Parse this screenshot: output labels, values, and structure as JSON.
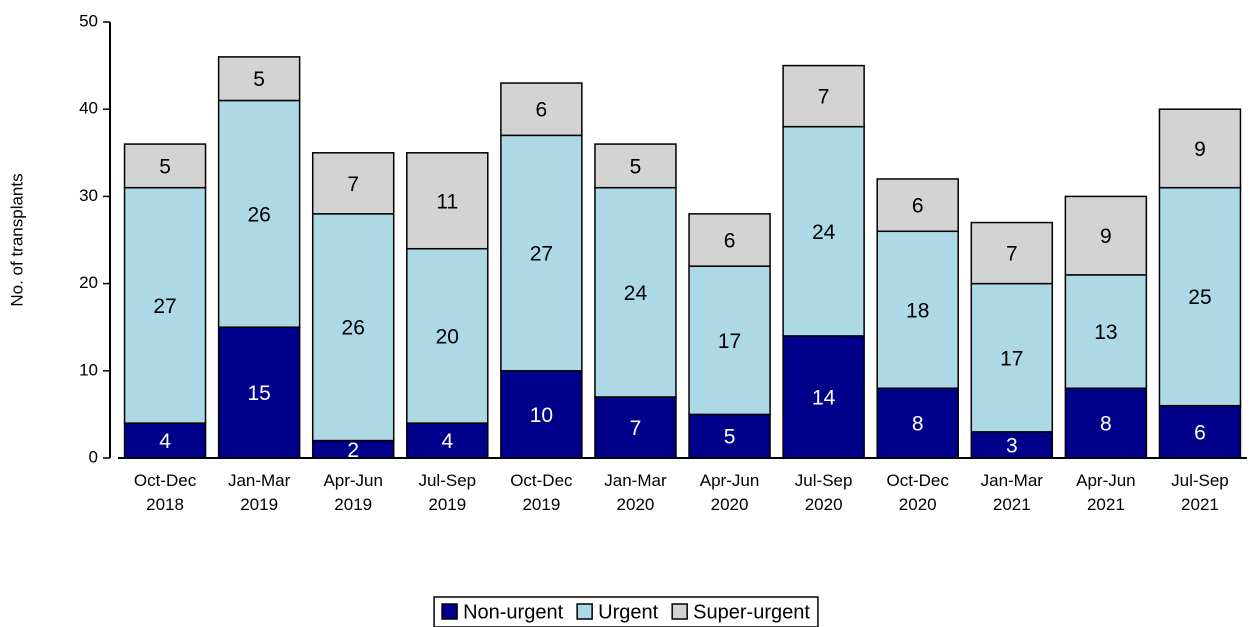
{
  "chart_data": {
    "type": "stacked_bar",
    "y_label": "No. of transplants",
    "categories": [
      [
        "Oct-Dec",
        "2018"
      ],
      [
        "Jan-Mar",
        "2019"
      ],
      [
        "Apr-Jun",
        "2019"
      ],
      [
        "Jul-Sep",
        "2019"
      ],
      [
        "Oct-Dec",
        "2019"
      ],
      [
        "Jan-Mar",
        "2020"
      ],
      [
        "Apr-Jun",
        "2020"
      ],
      [
        "Jul-Sep",
        "2020"
      ],
      [
        "Oct-Dec",
        "2020"
      ],
      [
        "Jan-Mar",
        "2021"
      ],
      [
        "Apr-Jun",
        "2021"
      ],
      [
        "Jul-Sep",
        "2021"
      ]
    ],
    "series": [
      {
        "name": "Non-urgent",
        "color": "#00008b",
        "label_color": "#ffffff",
        "values": [
          4,
          15,
          2,
          4,
          10,
          7,
          5,
          14,
          8,
          3,
          8,
          6
        ]
      },
      {
        "name": "Urgent",
        "color": "#add8e6",
        "label_color": "#000000",
        "values": [
          27,
          26,
          26,
          20,
          27,
          24,
          17,
          24,
          18,
          17,
          13,
          25
        ]
      },
      {
        "name": "Super-urgent",
        "color": "#d3d3d3",
        "label_color": "#000000",
        "values": [
          5,
          5,
          7,
          11,
          6,
          5,
          6,
          7,
          6,
          7,
          9,
          9
        ]
      }
    ],
    "ylim": [
      0,
      50
    ],
    "yticks": [
      0,
      10,
      20,
      30,
      40,
      50
    ],
    "legend": "bottom"
  }
}
